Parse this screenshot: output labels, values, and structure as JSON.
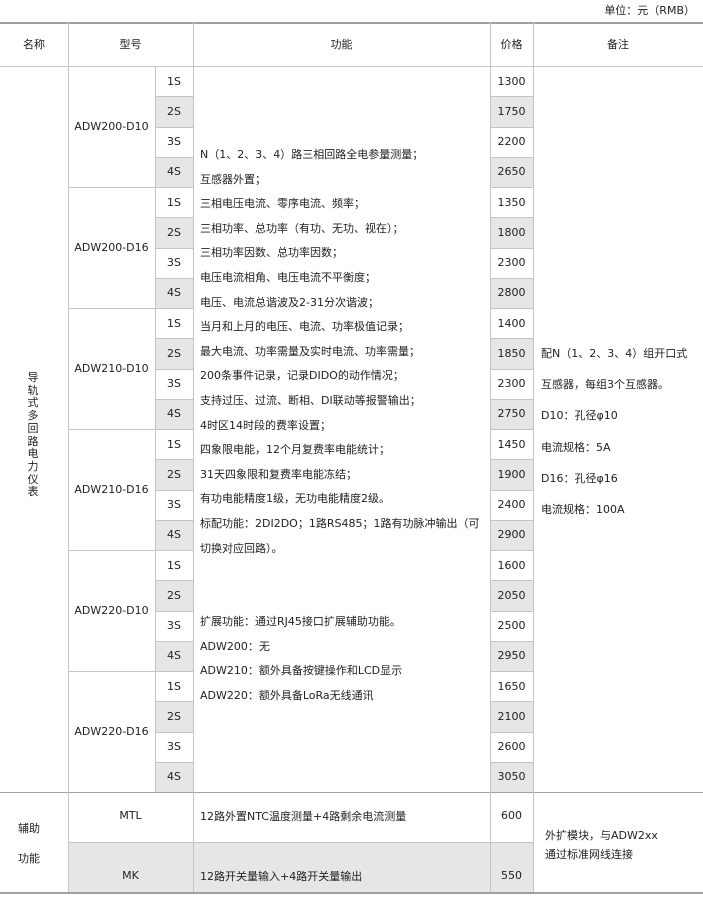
{
  "unit_label": "单位：元（RMB）",
  "header": {
    "name": "名称",
    "model": "型号",
    "function": "功能",
    "price": "价格",
    "remark": "备注"
  },
  "main_group": {
    "name": "导轨式多回路电力仪表",
    "models": [
      {
        "model": "ADW200-D10",
        "variants": [
          {
            "v": "1S",
            "price": "1300"
          },
          {
            "v": "2S",
            "price": "1750"
          },
          {
            "v": "3S",
            "price": "2200"
          },
          {
            "v": "4S",
            "price": "2650"
          }
        ]
      },
      {
        "model": "ADW200-D16",
        "variants": [
          {
            "v": "1S",
            "price": "1350"
          },
          {
            "v": "2S",
            "price": "1800"
          },
          {
            "v": "3S",
            "price": "2300"
          },
          {
            "v": "4S",
            "price": "2800"
          }
        ]
      },
      {
        "model": "ADW210-D10",
        "variants": [
          {
            "v": "1S",
            "price": "1400"
          },
          {
            "v": "2S",
            "price": "1850"
          },
          {
            "v": "3S",
            "price": "2300"
          },
          {
            "v": "4S",
            "price": "2750"
          }
        ]
      },
      {
        "model": "ADW210-D16",
        "variants": [
          {
            "v": "1S",
            "price": "1450"
          },
          {
            "v": "2S",
            "price": "1900"
          },
          {
            "v": "3S",
            "price": "2400"
          },
          {
            "v": "4S",
            "price": "2900"
          }
        ]
      },
      {
        "model": "ADW220-D10",
        "variants": [
          {
            "v": "1S",
            "price": "1600"
          },
          {
            "v": "2S",
            "price": "2050"
          },
          {
            "v": "3S",
            "price": "2500"
          },
          {
            "v": "4S",
            "price": "2950"
          }
        ]
      },
      {
        "model": "ADW220-D16",
        "variants": [
          {
            "v": "1S",
            "price": "1650"
          },
          {
            "v": "2S",
            "price": "2100"
          },
          {
            "v": "3S",
            "price": "2600"
          },
          {
            "v": "4S",
            "price": "3050"
          }
        ]
      }
    ],
    "function_lines": [
      "N（1、2、3、4）路三相回路全电参量测量；",
      "互感器外置；",
      "三相电压电流、零序电流、频率；",
      "三相功率、总功率（有功、无功、视在）；",
      "三相功率因数、总功率因数；",
      "电压电流相角、电压电流不平衡度；",
      "电压、电流总谐波及2-31分次谐波；",
      "当月和上月的电压、电流、功率极值记录；",
      "最大电流、功率需量及实时电流、功率需量；",
      "200条事件记录，记录DIDO的动作情况；",
      "支持过压、过流、断相、DI联动等报警输出；",
      "4时区14时段的费率设置；",
      "四象限电能，12个月复费率电能统计；",
      "31天四象限和复费率电能冻结；",
      "有功电能精度1级，无功电能精度2级。",
      "标配功能：2DI2DO；1路RS485；1路有功脉冲输出（可",
      "切换对应回路）。",
      "",
      "",
      "扩展功能：通过RJ45接口扩展辅助功能。",
      "ADW200：无",
      "ADW210：额外具备按键操作和LCD显示",
      "ADW220：额外具备LoRa无线通讯"
    ],
    "remark_lines": [
      "配N（1、2、3、4）组开口式",
      "互感器，每组3个互感器。",
      "D10：孔径φ10",
      "电流规格：5A",
      "D16：孔径φ16",
      "电流规格：100A"
    ]
  },
  "aux_group": {
    "name_lines": [
      "辅助",
      "功能"
    ],
    "rows": [
      {
        "model": "MTL",
        "function": "12路外置NTC温度测量+4路剩余电流测量",
        "price": "600"
      },
      {
        "model": "MK",
        "function": "12路开关量输入+4路开关量输出",
        "price": "550"
      }
    ],
    "remark": "外扩模块，与ADW2xx通过标准网线连接",
    "remark_lines": [
      "外扩模块，与ADW2xx",
      "通过标准网线连接"
    ]
  },
  "colors": {
    "shade": "#e6e6e6",
    "rule": "#c4c4c4",
    "border": "#a0a0a0"
  }
}
